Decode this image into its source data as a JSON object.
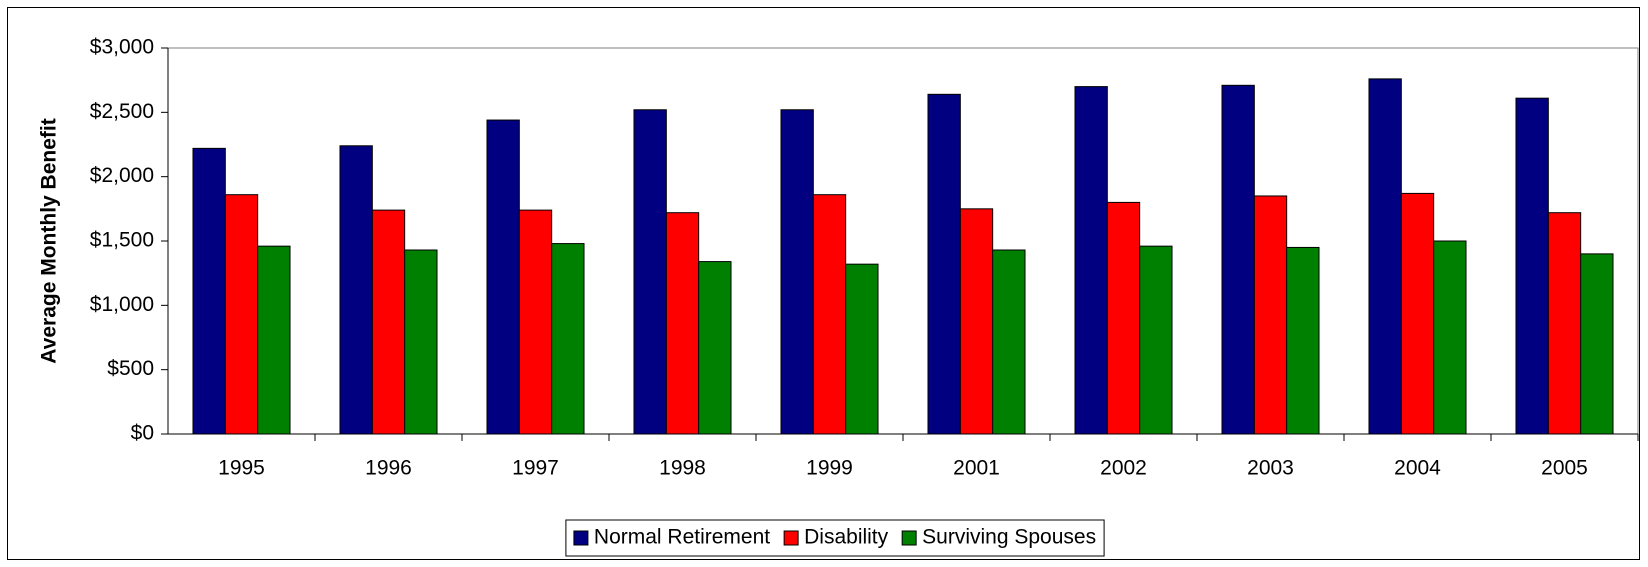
{
  "chart_data": {
    "type": "bar",
    "y_label": "Average Monthly Benefit",
    "categories": [
      "1995",
      "1996",
      "1997",
      "1998",
      "1999",
      "2001",
      "2002",
      "2003",
      "2004",
      "2005"
    ],
    "series": [
      {
        "name": "Normal Retirement",
        "color": "#000080",
        "values": [
          2220,
          2240,
          2440,
          2520,
          2520,
          2640,
          2700,
          2710,
          2760,
          2610
        ]
      },
      {
        "name": "Disability",
        "color": "#ff0000",
        "values": [
          1860,
          1740,
          1740,
          1720,
          1860,
          1750,
          1800,
          1850,
          1870,
          1720
        ]
      },
      {
        "name": "Surviving Spouses",
        "color": "#008000",
        "values": [
          1460,
          1430,
          1480,
          1340,
          1320,
          1430,
          1460,
          1450,
          1500,
          1400
        ]
      }
    ],
    "ylim": [
      0,
      3000
    ],
    "yticks": [
      {
        "value": 0,
        "label": "$0"
      },
      {
        "value": 500,
        "label": "$500"
      },
      {
        "value": 1000,
        "label": "$1,000"
      },
      {
        "value": 1500,
        "label": "$1,500"
      },
      {
        "value": 2000,
        "label": "$2,000"
      },
      {
        "value": 2500,
        "label": "$2,500"
      },
      {
        "value": 3000,
        "label": "$3,000"
      }
    ],
    "grid": false,
    "legend": "bottom"
  }
}
